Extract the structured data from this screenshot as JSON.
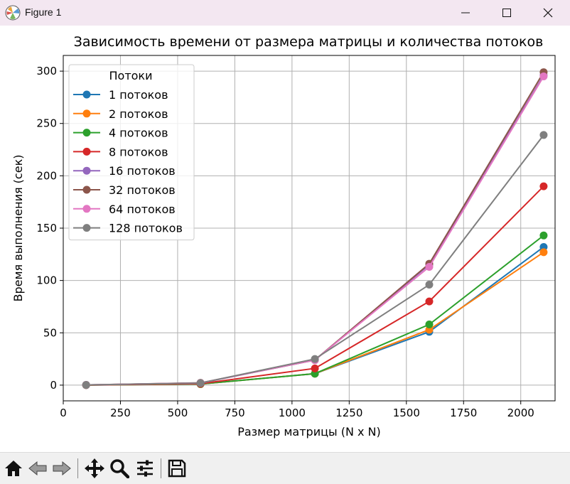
{
  "window": {
    "title": "Figure 1",
    "minimize_icon": "minimize-icon",
    "maximize_icon": "maximize-icon",
    "close_icon": "close-icon"
  },
  "toolbar": {
    "buttons": [
      "home-icon",
      "back-arrow-icon",
      "forward-arrow-icon",
      "pan-icon",
      "zoom-icon",
      "configure-subplots-icon",
      "save-icon"
    ]
  },
  "chart_data": {
    "type": "line",
    "title": "Зависимость времени от размера матрицы и количества потоков",
    "xlabel": "Размер матрицы (N x N)",
    "ylabel": "Время выполнения (сек)",
    "xlim": [
      0,
      2150
    ],
    "ylim": [
      -15,
      315
    ],
    "xticks": [
      0,
      250,
      500,
      750,
      1000,
      1250,
      1500,
      1750,
      2000
    ],
    "yticks": [
      0,
      50,
      100,
      150,
      200,
      250,
      300
    ],
    "grid": true,
    "legend_title": "Потоки",
    "legend_position": "upper-left",
    "x": [
      100,
      600,
      1100,
      1600,
      2100
    ],
    "series": [
      {
        "name": "1 потоков",
        "color": "#1f77b4",
        "values": [
          0.1,
          1.0,
          11,
          51,
          132
        ]
      },
      {
        "name": "2 потоков",
        "color": "#ff7f0e",
        "values": [
          0.1,
          1.0,
          11,
          53,
          127
        ]
      },
      {
        "name": "4 потоков",
        "color": "#2ca02c",
        "values": [
          0.1,
          1.1,
          11,
          58,
          143
        ]
      },
      {
        "name": "8 потоков",
        "color": "#d62728",
        "values": [
          0.1,
          1.4,
          16,
          80,
          190
        ]
      },
      {
        "name": "16 потоков",
        "color": "#9467bd",
        "values": [
          0.2,
          2.0,
          24,
          115,
          296
        ]
      },
      {
        "name": "32 потоков",
        "color": "#8c564b",
        "values": [
          0.2,
          2.2,
          24,
          116,
          299
        ]
      },
      {
        "name": "64 потоков",
        "color": "#e377c2",
        "values": [
          0.2,
          2.1,
          24,
          113,
          295
        ]
      },
      {
        "name": "128 потоков",
        "color": "#7f7f7f",
        "values": [
          0.2,
          2.0,
          25,
          96,
          239
        ]
      }
    ]
  }
}
